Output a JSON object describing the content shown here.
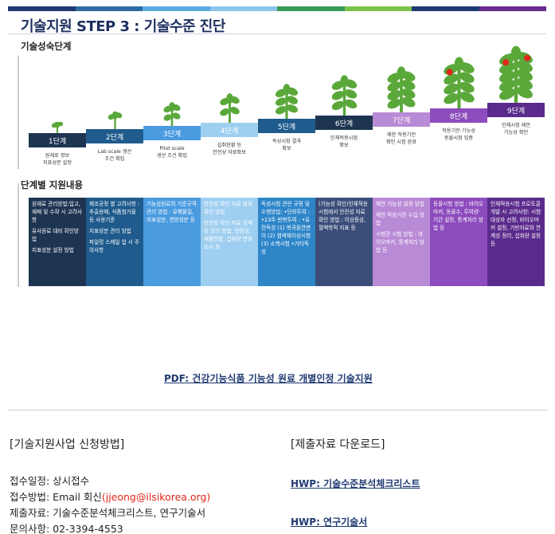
{
  "colors": {
    "topbar": [
      "#1f3a72",
      "#2c6ca1",
      "#5ba9e0",
      "#8bc6ea",
      "#3a9a5c",
      "#7cc24a",
      "#1f3a72",
      "#6a2c8c"
    ],
    "steps": [
      "#1e3552",
      "#1f5b8c",
      "#4a9be0",
      "#9fcff0",
      "#1f5b8c",
      "#1e3552",
      "#b98ad6",
      "#8d4cbd",
      "#5b2b8c"
    ],
    "columns": [
      "#1e3552",
      "#1f5b8c",
      "#4a9be0",
      "#9fcff0",
      "#2e86c9",
      "#3b4e7a",
      "#b98ad6",
      "#8d4cbd",
      "#5b2b8c"
    ],
    "plant_leaf": "#5aa83a",
    "fruit": "#e0271b",
    "link": "#1f3a72",
    "email": "#e0271b"
  },
  "title": "기술지원 STEP 3 : 기술수준 진단",
  "section_maturity": "기술성숙단계",
  "section_support": "단계별 지원내용",
  "steps": [
    {
      "label": "1단계",
      "desc": "원재료 정보\n지표성분 설정",
      "fruits": 0
    },
    {
      "label": "2단계",
      "desc": "Lab scale 생산\n조건 확립",
      "fruits": 0
    },
    {
      "label": "3단계",
      "desc": "Pilot scale\n생산 조건 확립",
      "fruits": 0
    },
    {
      "label": "4단계",
      "desc": "섭취현황 등\n안전성 자료확보",
      "fruits": 0
    },
    {
      "label": "5단계",
      "desc": "독성시험 결과\n확보",
      "fruits": 0
    },
    {
      "label": "6단계",
      "desc": "인체적용시험\n확보",
      "fruits": 0
    },
    {
      "label": "7단계",
      "desc": "제한 작용기전\n확인 시험 완료",
      "fruits": 0
    },
    {
      "label": "8단계",
      "desc": "작용기전·기능성\n동물시험 입증",
      "fruits": 1
    },
    {
      "label": "9단계",
      "desc": "인체시험 제안\n기능성 확인",
      "fruits": 2
    }
  ],
  "support_columns": [
    [
      "원재료 관리방법:업고, 재배 및 수확 시 고려사항",
      "유사원료 대비 확인방법",
      "지표성분 설정 방법"
    ],
    [
      "제조공정 별 고려사항 : 추출용매, 식품첨가물 등 사용기준",
      "지표성분 관리 방법",
      "파일럿 스케일 업 시 주의사항"
    ],
    [
      "기능성원료의 기준규격 관리 방법 : 유해물질, 지표성분, 영양성분 등"
    ],
    [
      "안전성 확인 자료 범위 확인 방법",
      "안전성 확인 자료 검색 및 정리 방법, 안정성, 재품현황, 섭취량 변화 조사 등"
    ],
    [
      "독성시험 관련 규정 및 수행방법: •단회투여 : •13주 반복투여 : •유전독성 (1) 복귀돌연변이 (2) 염색체이상시험 (3) 소핵시험 •기타독성"
    ],
    [
      "(기능성 확인)인체적용시험에서 안전성 자료 확인 방법 : 이상증상, 혈액학적 지표 등"
    ],
    [
      "제안 기능성 설정 방법",
      "제안 작용기전 수집 방법",
      "시험관 시험 방법 : 바이오마커, 통계처리 방법 등"
    ],
    [
      "동물시험 방법 : 바이오마커, 동물수, 투여량·기간 설정, 통계처리 방법 등"
    ],
    [
      "인체적용시험 프로토콜 개발 시 고려사항: 시험대상자 선정, 바이오마커 설정, 기반자료와 연계성 정리, 섭취량 설정 등"
    ]
  ],
  "pdf_link": "PDF: 건강기능식품 기능성 원료 개별인정 기술지원",
  "apply_heading": "[기술지원사업 신청방법]",
  "download_heading": "[제출자료 다운로드]",
  "info": {
    "intake_schedule": "접수일정: 상시접수",
    "intake_method_prefix": "접수방법: Email 회신",
    "email": "(jjeong@ilsikorea.org)",
    "documents": "제출자료: 기술수준분석체크리스트, 연구기술서",
    "contact": "문의사항: 02-3394-4553"
  },
  "downloads": [
    "HWP: 기술수준분석체크리스트",
    "HWP: 연구기술서"
  ]
}
